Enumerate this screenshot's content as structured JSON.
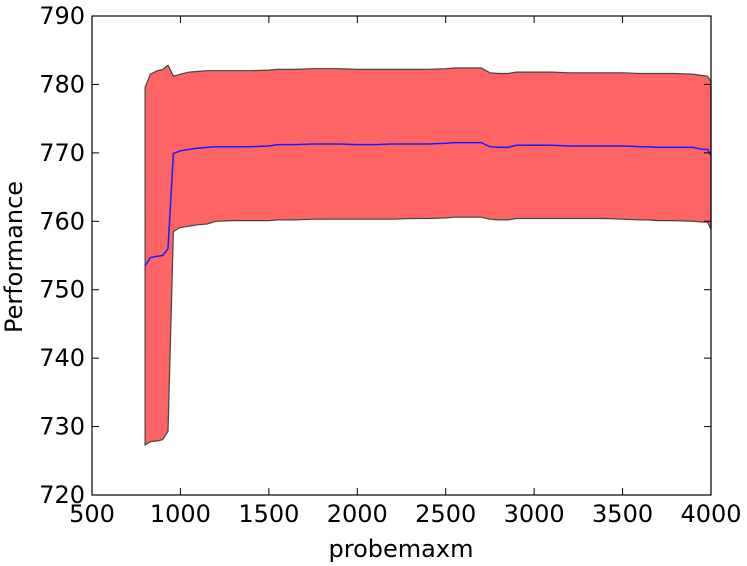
{
  "chart_data": {
    "type": "line",
    "title": "",
    "xlabel": "probemaxm",
    "ylabel": "Performance",
    "xlim": [
      500,
      4000
    ],
    "ylim": [
      720,
      790
    ],
    "xticks": [
      500,
      1000,
      1500,
      2000,
      2500,
      3000,
      3500,
      4000
    ],
    "yticks": [
      720,
      730,
      740,
      750,
      760,
      770,
      780,
      790
    ],
    "grid": false,
    "colors": {
      "band_fill": "#ff6464",
      "band_edge": "#444444",
      "mean_line": "#1a1aff"
    },
    "series": [
      {
        "x": [
          800,
          830,
          870,
          900,
          930,
          960,
          1000,
          1050,
          1100,
          1150,
          1200,
          1300,
          1400,
          1500,
          1550,
          1650,
          1750,
          1900,
          2000,
          2100,
          2200,
          2300,
          2400,
          2500,
          2550,
          2650,
          2700,
          2750,
          2800,
          2850,
          2900,
          3000,
          3100,
          3200,
          3300,
          3400,
          3500,
          3600,
          3650,
          3700,
          3800,
          3900,
          3950,
          3980,
          4000
        ],
        "mean": [
          753.5,
          754.7,
          754.9,
          755.0,
          756.0,
          769.9,
          770.3,
          770.5,
          770.7,
          770.8,
          770.9,
          770.9,
          770.9,
          771.0,
          771.2,
          771.2,
          771.3,
          771.3,
          771.2,
          771.2,
          771.3,
          771.3,
          771.3,
          771.4,
          771.5,
          771.5,
          771.5,
          770.9,
          770.8,
          770.8,
          771.1,
          771.1,
          771.1,
          771.0,
          771.0,
          771.0,
          771.0,
          770.9,
          770.9,
          770.8,
          770.8,
          770.8,
          770.5,
          770.5,
          769.6
        ],
        "upper": [
          779.6,
          781.5,
          782.0,
          782.2,
          782.8,
          781.2,
          781.5,
          781.8,
          781.9,
          782.0,
          782.0,
          782.0,
          782.0,
          782.1,
          782.2,
          782.2,
          782.3,
          782.3,
          782.2,
          782.2,
          782.2,
          782.2,
          782.2,
          782.3,
          782.4,
          782.4,
          782.4,
          781.7,
          781.6,
          781.6,
          781.8,
          781.8,
          781.8,
          781.7,
          781.7,
          781.7,
          781.7,
          781.6,
          781.6,
          781.6,
          781.6,
          781.5,
          781.3,
          781.2,
          780.4
        ],
        "lower": [
          727.3,
          727.8,
          727.9,
          728.1,
          729.3,
          758.5,
          759.1,
          759.3,
          759.5,
          759.6,
          760.0,
          760.1,
          760.1,
          760.1,
          760.2,
          760.2,
          760.3,
          760.3,
          760.3,
          760.3,
          760.3,
          760.4,
          760.4,
          760.5,
          760.6,
          760.6,
          760.6,
          760.3,
          760.2,
          760.2,
          760.4,
          760.4,
          760.4,
          760.4,
          760.4,
          760.4,
          760.3,
          760.2,
          760.2,
          760.1,
          760.1,
          760.0,
          759.9,
          759.9,
          758.8
        ]
      }
    ]
  }
}
